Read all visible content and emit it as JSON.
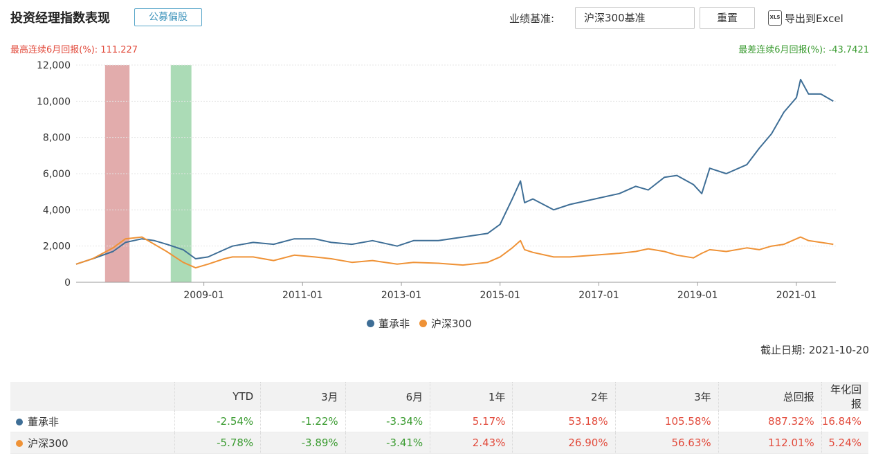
{
  "header": {
    "title": "投资经理指数表现",
    "tag": "公募偏股",
    "benchmark_label": "业绩基准:",
    "benchmark_value": "沪深300基准",
    "reset_label": "重置",
    "export_label": "导出到Excel",
    "export_icon": "XLS"
  },
  "stats": {
    "best_label": "最高连续6月回报(%):",
    "best_value": "111.227",
    "worst_label": "最差连续6月回报(%):",
    "worst_value": "-43.7421"
  },
  "colors": {
    "manager": "#3e6e96",
    "index": "#ef9236",
    "best_band": "#d89090",
    "worst_band": "#8fcf9e",
    "positive": "#e24a3b",
    "negative": "#3a9b30"
  },
  "chart_data": {
    "type": "line",
    "x_ticks": [
      "2009-01",
      "2011-01",
      "2013-01",
      "2015-01",
      "2017-01",
      "2019-01",
      "2021-01"
    ],
    "ylim": [
      0,
      12000
    ],
    "y_ticks": [
      "0",
      "2,000",
      "4,000",
      "6,000",
      "8,000",
      "10,000",
      "12,000"
    ],
    "grid": true,
    "legend_position": "bottom",
    "highlight_best": [
      "2007-01",
      "2007-07"
    ],
    "highlight_worst": [
      "2008-05",
      "2008-10"
    ],
    "series": [
      {
        "name": "董承非",
        "x": [
          "2006-06",
          "2006-10",
          "2007-03",
          "2007-06",
          "2007-10",
          "2008-01",
          "2008-04",
          "2008-08",
          "2008-11",
          "2009-02",
          "2009-06",
          "2009-08",
          "2010-01",
          "2010-06",
          "2010-11",
          "2011-04",
          "2011-08",
          "2012-01",
          "2012-06",
          "2012-12",
          "2013-04",
          "2013-10",
          "2014-04",
          "2014-10",
          "2015-01",
          "2015-04",
          "2015-06",
          "2015-07",
          "2015-09",
          "2016-02",
          "2016-06",
          "2016-12",
          "2017-06",
          "2017-10",
          "2018-01",
          "2018-05",
          "2018-08",
          "2018-12",
          "2019-02",
          "2019-04",
          "2019-08",
          "2020-01",
          "2020-04",
          "2020-07",
          "2020-10",
          "2021-01",
          "2021-02",
          "2021-04",
          "2021-07",
          "2021-10"
        ],
        "values": [
          1000,
          1300,
          1700,
          2200,
          2400,
          2300,
          2100,
          1800,
          1300,
          1400,
          1800,
          2000,
          2200,
          2100,
          2400,
          2400,
          2200,
          2100,
          2300,
          2000,
          2300,
          2300,
          2500,
          2700,
          3200,
          4600,
          5600,
          4400,
          4600,
          4000,
          4300,
          4600,
          4900,
          5300,
          5100,
          5800,
          5900,
          5400,
          4900,
          6300,
          6000,
          6500,
          7400,
          8200,
          9400,
          10200,
          11200,
          10400,
          10400,
          10000
        ]
      },
      {
        "name": "沪深300",
        "x": [
          "2006-06",
          "2006-10",
          "2007-03",
          "2007-06",
          "2007-10",
          "2008-01",
          "2008-04",
          "2008-08",
          "2008-11",
          "2009-02",
          "2009-06",
          "2009-08",
          "2010-01",
          "2010-06",
          "2010-11",
          "2011-04",
          "2011-08",
          "2012-01",
          "2012-06",
          "2012-12",
          "2013-04",
          "2013-10",
          "2014-04",
          "2014-10",
          "2015-01",
          "2015-04",
          "2015-06",
          "2015-07",
          "2015-09",
          "2016-02",
          "2016-06",
          "2016-12",
          "2017-06",
          "2017-10",
          "2018-01",
          "2018-05",
          "2018-08",
          "2018-12",
          "2019-02",
          "2019-04",
          "2019-08",
          "2020-01",
          "2020-04",
          "2020-07",
          "2020-10",
          "2021-01",
          "2021-02",
          "2021-04",
          "2021-07",
          "2021-10"
        ],
        "values": [
          1000,
          1300,
          1900,
          2400,
          2500,
          2100,
          1700,
          1100,
          800,
          1000,
          1300,
          1400,
          1400,
          1200,
          1500,
          1400,
          1300,
          1100,
          1200,
          1000,
          1100,
          1050,
          950,
          1100,
          1400,
          1900,
          2300,
          1800,
          1650,
          1400,
          1400,
          1500,
          1600,
          1700,
          1850,
          1700,
          1500,
          1350,
          1600,
          1800,
          1700,
          1900,
          1800,
          2000,
          2100,
          2400,
          2500,
          2300,
          2200,
          2100
        ]
      }
    ]
  },
  "legend": {
    "manager": "董承非",
    "index": "沪深300"
  },
  "asof": {
    "label": "截止日期:",
    "value": "2021-10-20"
  },
  "table": {
    "headers": [
      "YTD",
      "3月",
      "6月",
      "1年",
      "2年",
      "3年",
      "总回报",
      "年化回报"
    ],
    "rows": [
      {
        "name": "董承非",
        "values": [
          "-2.54%",
          "-1.22%",
          "-3.34%",
          "5.17%",
          "53.18%",
          "105.58%",
          "887.32%",
          "16.84%"
        ]
      },
      {
        "name": "沪深300",
        "values": [
          "-5.78%",
          "-3.89%",
          "-3.41%",
          "2.43%",
          "26.90%",
          "56.63%",
          "112.01%",
          "5.24%"
        ]
      }
    ]
  }
}
